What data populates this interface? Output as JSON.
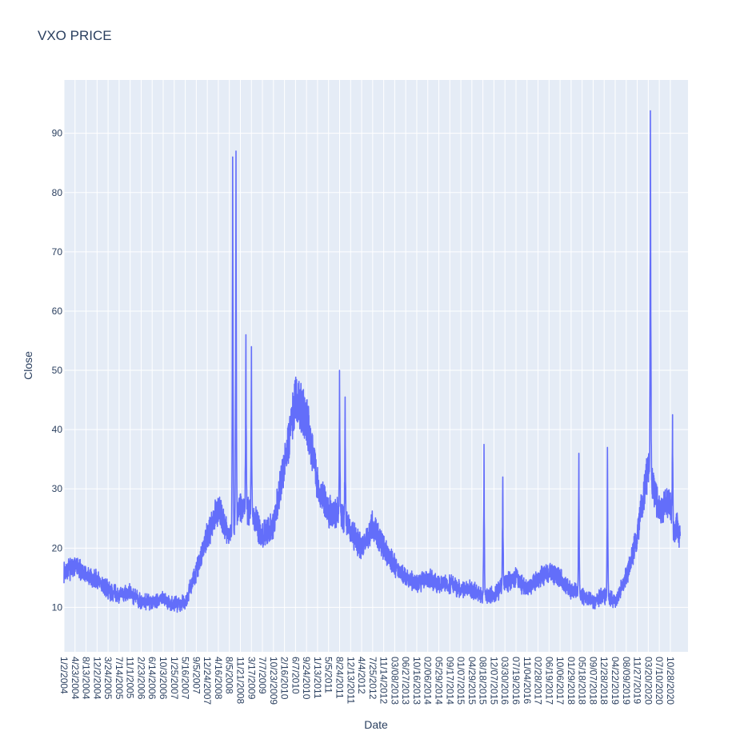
{
  "chart_data": {
    "type": "line",
    "title": "VXO PRICE",
    "xlabel": "Date",
    "ylabel": "Close",
    "ylim": [
      2.5,
      99
    ],
    "yticks": [
      10,
      20,
      30,
      40,
      50,
      60,
      70,
      80,
      90
    ],
    "xticks": [
      "1/2/2004",
      "4/23/2004",
      "8/13/2004",
      "12/2/2004",
      "3/24/2005",
      "7/14/2005",
      "11/1/2005",
      "2/23/2006",
      "6/14/2006",
      "10/3/2006",
      "1/25/2007",
      "5/16/2007",
      "9/5/2007",
      "12/24/2007",
      "4/16/2008",
      "8/5/2008",
      "11/21/2008",
      "3/17/2009",
      "7/7/2009",
      "10/23/2009",
      "2/16/2010",
      "6/7/2010",
      "9/24/2010",
      "1/13/2011",
      "5/5/2011",
      "8/24/2011",
      "12/13/2011",
      "4/4/2012",
      "7/25/2012",
      "11/14/2012",
      "03/08/2013",
      "06/27/2013",
      "10/16/2013",
      "02/06/2014",
      "05/29/2014",
      "09/17/2014",
      "01/07/2015",
      "04/29/2015",
      "08/18/2015",
      "12/07/2015",
      "03/30/2016",
      "07/19/2016",
      "11/04/2016",
      "02/28/2017",
      "06/19/2017",
      "10/06/2017",
      "01/29/2018",
      "05/18/2018",
      "09/07/2018",
      "12/28/2018",
      "04/22/2019",
      "08/09/2019",
      "11/27/2019",
      "03/20/2020",
      "07/10/2020",
      "10/28/2020"
    ],
    "grid": true,
    "legend": "none",
    "line_color": "#636efa",
    "series": [
      {
        "x": [
          0,
          1,
          2,
          3,
          4,
          5,
          6,
          7,
          8,
          9,
          10,
          11,
          12,
          13,
          14,
          15,
          16,
          17,
          18,
          19,
          20,
          21,
          22,
          23,
          24,
          25,
          26,
          27,
          28,
          29,
          30,
          31,
          32,
          33,
          34,
          35,
          36,
          37,
          38,
          39,
          40,
          41,
          42,
          43,
          44,
          45,
          46,
          47,
          48,
          49,
          50,
          51,
          52,
          53,
          54,
          55,
          55.3,
          55.6,
          55.9
        ],
        "values": [
          16,
          17,
          15.5,
          14.5,
          13,
          12,
          12.5,
          11,
          11,
          11.5,
          10.5,
          11,
          16,
          22,
          27,
          22,
          27,
          26,
          22,
          24,
          34,
          45,
          42,
          31,
          26,
          26,
          23,
          20,
          24,
          20,
          17,
          15,
          14,
          15,
          14,
          14,
          13,
          13,
          12,
          12,
          14,
          15,
          13,
          15,
          16,
          15,
          13,
          12,
          11,
          12,
          11,
          15,
          22,
          34,
          26,
          28,
          22,
          24,
          21.5
        ]
      }
    ],
    "peaks": [
      {
        "x": 15.3,
        "y": 86
      },
      {
        "x": 15.6,
        "y": 87
      },
      {
        "x": 16.5,
        "y": 56
      },
      {
        "x": 17.0,
        "y": 54
      },
      {
        "x": 20.6,
        "y": 43.5
      },
      {
        "x": 25.0,
        "y": 50
      },
      {
        "x": 25.5,
        "y": 45.5
      },
      {
        "x": 38.1,
        "y": 37.5
      },
      {
        "x": 39.8,
        "y": 32
      },
      {
        "x": 46.7,
        "y": 36
      },
      {
        "x": 49.3,
        "y": 37
      },
      {
        "x": 53.2,
        "y": 93.8
      },
      {
        "x": 55.2,
        "y": 42.5
      }
    ]
  }
}
